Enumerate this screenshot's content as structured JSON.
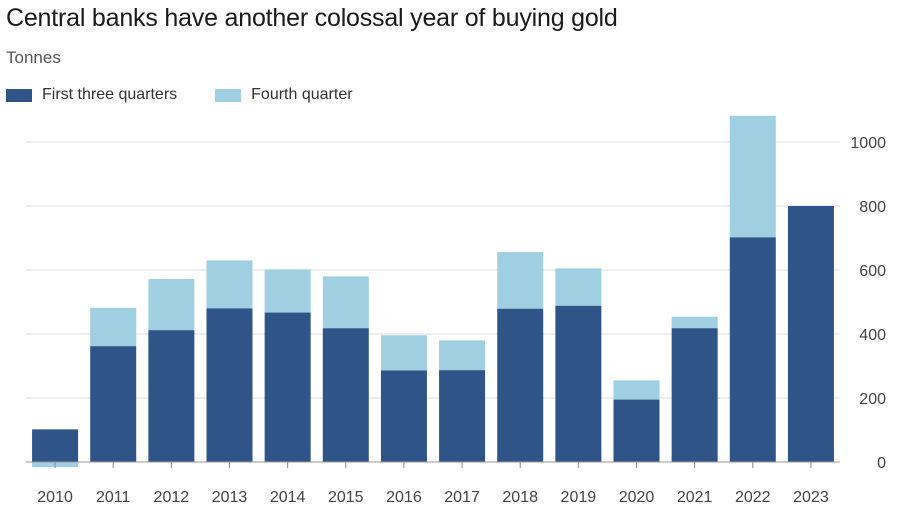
{
  "title": "Central banks have another colossal year of buying gold",
  "subtitle": "Tonnes",
  "legend": {
    "first": "First three quarters",
    "fourth": "Fourth quarter"
  },
  "colors": {
    "first": "#2f5487",
    "fourth": "#9fcfe0",
    "grid": "#dcdcdc",
    "baseline": "#999999"
  },
  "chart_data": {
    "type": "bar",
    "stacked": true,
    "categories": [
      "2010",
      "2011",
      "2012",
      "2013",
      "2014",
      "2015",
      "2016",
      "2017",
      "2018",
      "2019",
      "2020",
      "2021",
      "2022",
      "2023"
    ],
    "series": [
      {
        "name": "First three quarters",
        "values": [
          102,
          362,
          412,
          480,
          467,
          418,
          286,
          287,
          479,
          488,
          195,
          418,
          702,
          800
        ]
      },
      {
        "name": "Fourth quarter",
        "values": [
          -16,
          120,
          160,
          150,
          135,
          162,
          110,
          93,
          177,
          117,
          60,
          36,
          380,
          0
        ]
      }
    ],
    "ylim": [
      0,
      1100
    ],
    "yticks": [
      0,
      200,
      400,
      600,
      800,
      1000
    ],
    "ytick_labels": [
      "0",
      "200",
      "400",
      "600",
      "800",
      "1000"
    ],
    "grid": true,
    "y_axis_side": "right",
    "legend_position": "top-left"
  }
}
